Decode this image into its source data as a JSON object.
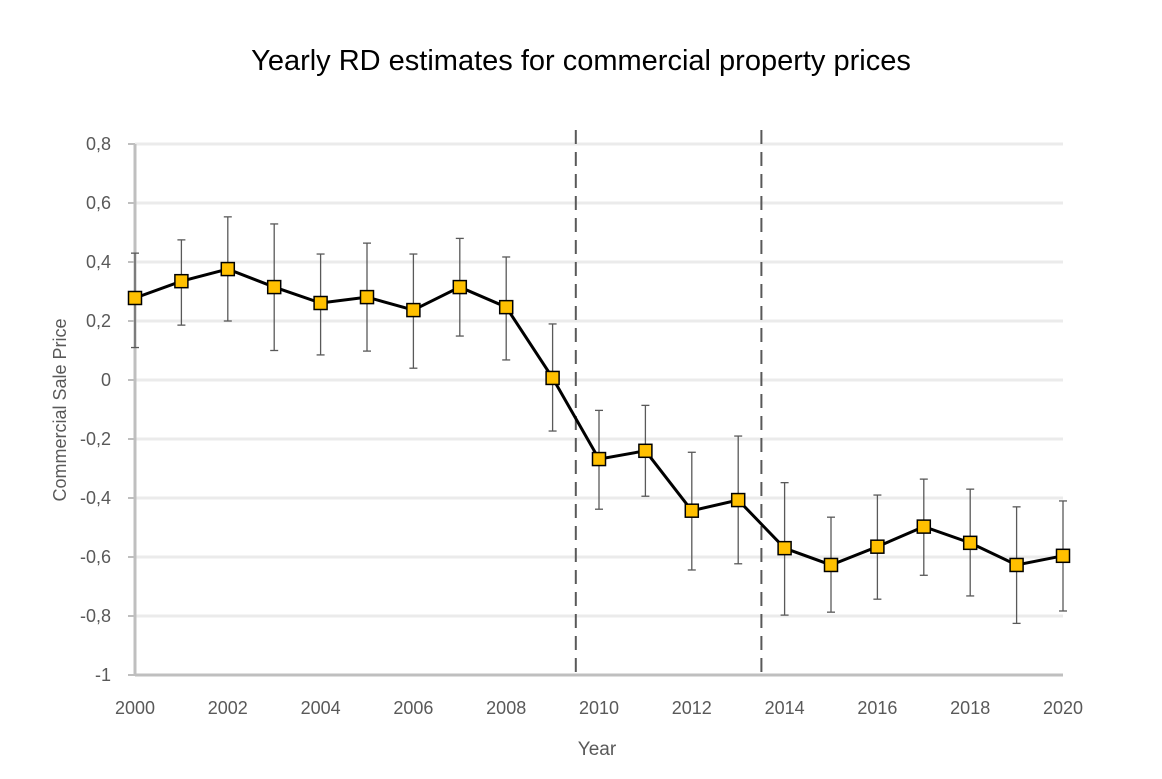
{
  "chart_data": {
    "type": "line",
    "title": "Yearly RD estimates for commercial property prices",
    "xlabel": "Year",
    "ylabel": "Commercial Sale Price",
    "xlim": [
      2000,
      2020
    ],
    "ylim": [
      -1,
      0.8
    ],
    "x_ticks": [
      "2000",
      "2002",
      "2004",
      "2006",
      "2008",
      "2010",
      "2012",
      "2014",
      "2016",
      "2018",
      "2020"
    ],
    "y_ticks": [
      "0,8",
      "0,6",
      "0,4",
      "0,2",
      "0",
      "-0,2",
      "-0,4",
      "-0,6",
      "-0,8",
      "-1"
    ],
    "grid": true,
    "vertical_reference_lines": [
      2009.5,
      2013.5
    ],
    "series": [
      {
        "x": [
          2000,
          2001,
          2002,
          2003,
          2004,
          2005,
          2006,
          2007,
          2008,
          2009,
          2010,
          2011,
          2012,
          2013,
          2014,
          2015,
          2016,
          2017,
          2018,
          2019,
          2020
        ],
        "y": [
          0.278,
          0.335,
          0.376,
          0.315,
          0.261,
          0.281,
          0.237,
          0.315,
          0.247,
          0.007,
          -0.268,
          -0.24,
          -0.443,
          -0.407,
          -0.57,
          -0.627,
          -0.565,
          -0.497,
          -0.552,
          -0.627,
          -0.596
        ],
        "err_upper": [
          0.43,
          0.475,
          0.553,
          0.529,
          0.427,
          0.464,
          0.427,
          0.48,
          0.417,
          0.19,
          -0.103,
          -0.086,
          -0.245,
          -0.19,
          -0.348,
          -0.465,
          -0.39,
          -0.336,
          -0.37,
          -0.43,
          -0.41
        ],
        "err_lower": [
          0.11,
          0.186,
          0.2,
          0.1,
          0.085,
          0.098,
          0.04,
          0.149,
          0.068,
          -0.173,
          -0.438,
          -0.394,
          -0.644,
          -0.623,
          -0.797,
          -0.787,
          -0.743,
          -0.662,
          -0.732,
          -0.825,
          -0.783
        ],
        "color": "#000000",
        "marker_color": "#FFC000"
      }
    ]
  }
}
